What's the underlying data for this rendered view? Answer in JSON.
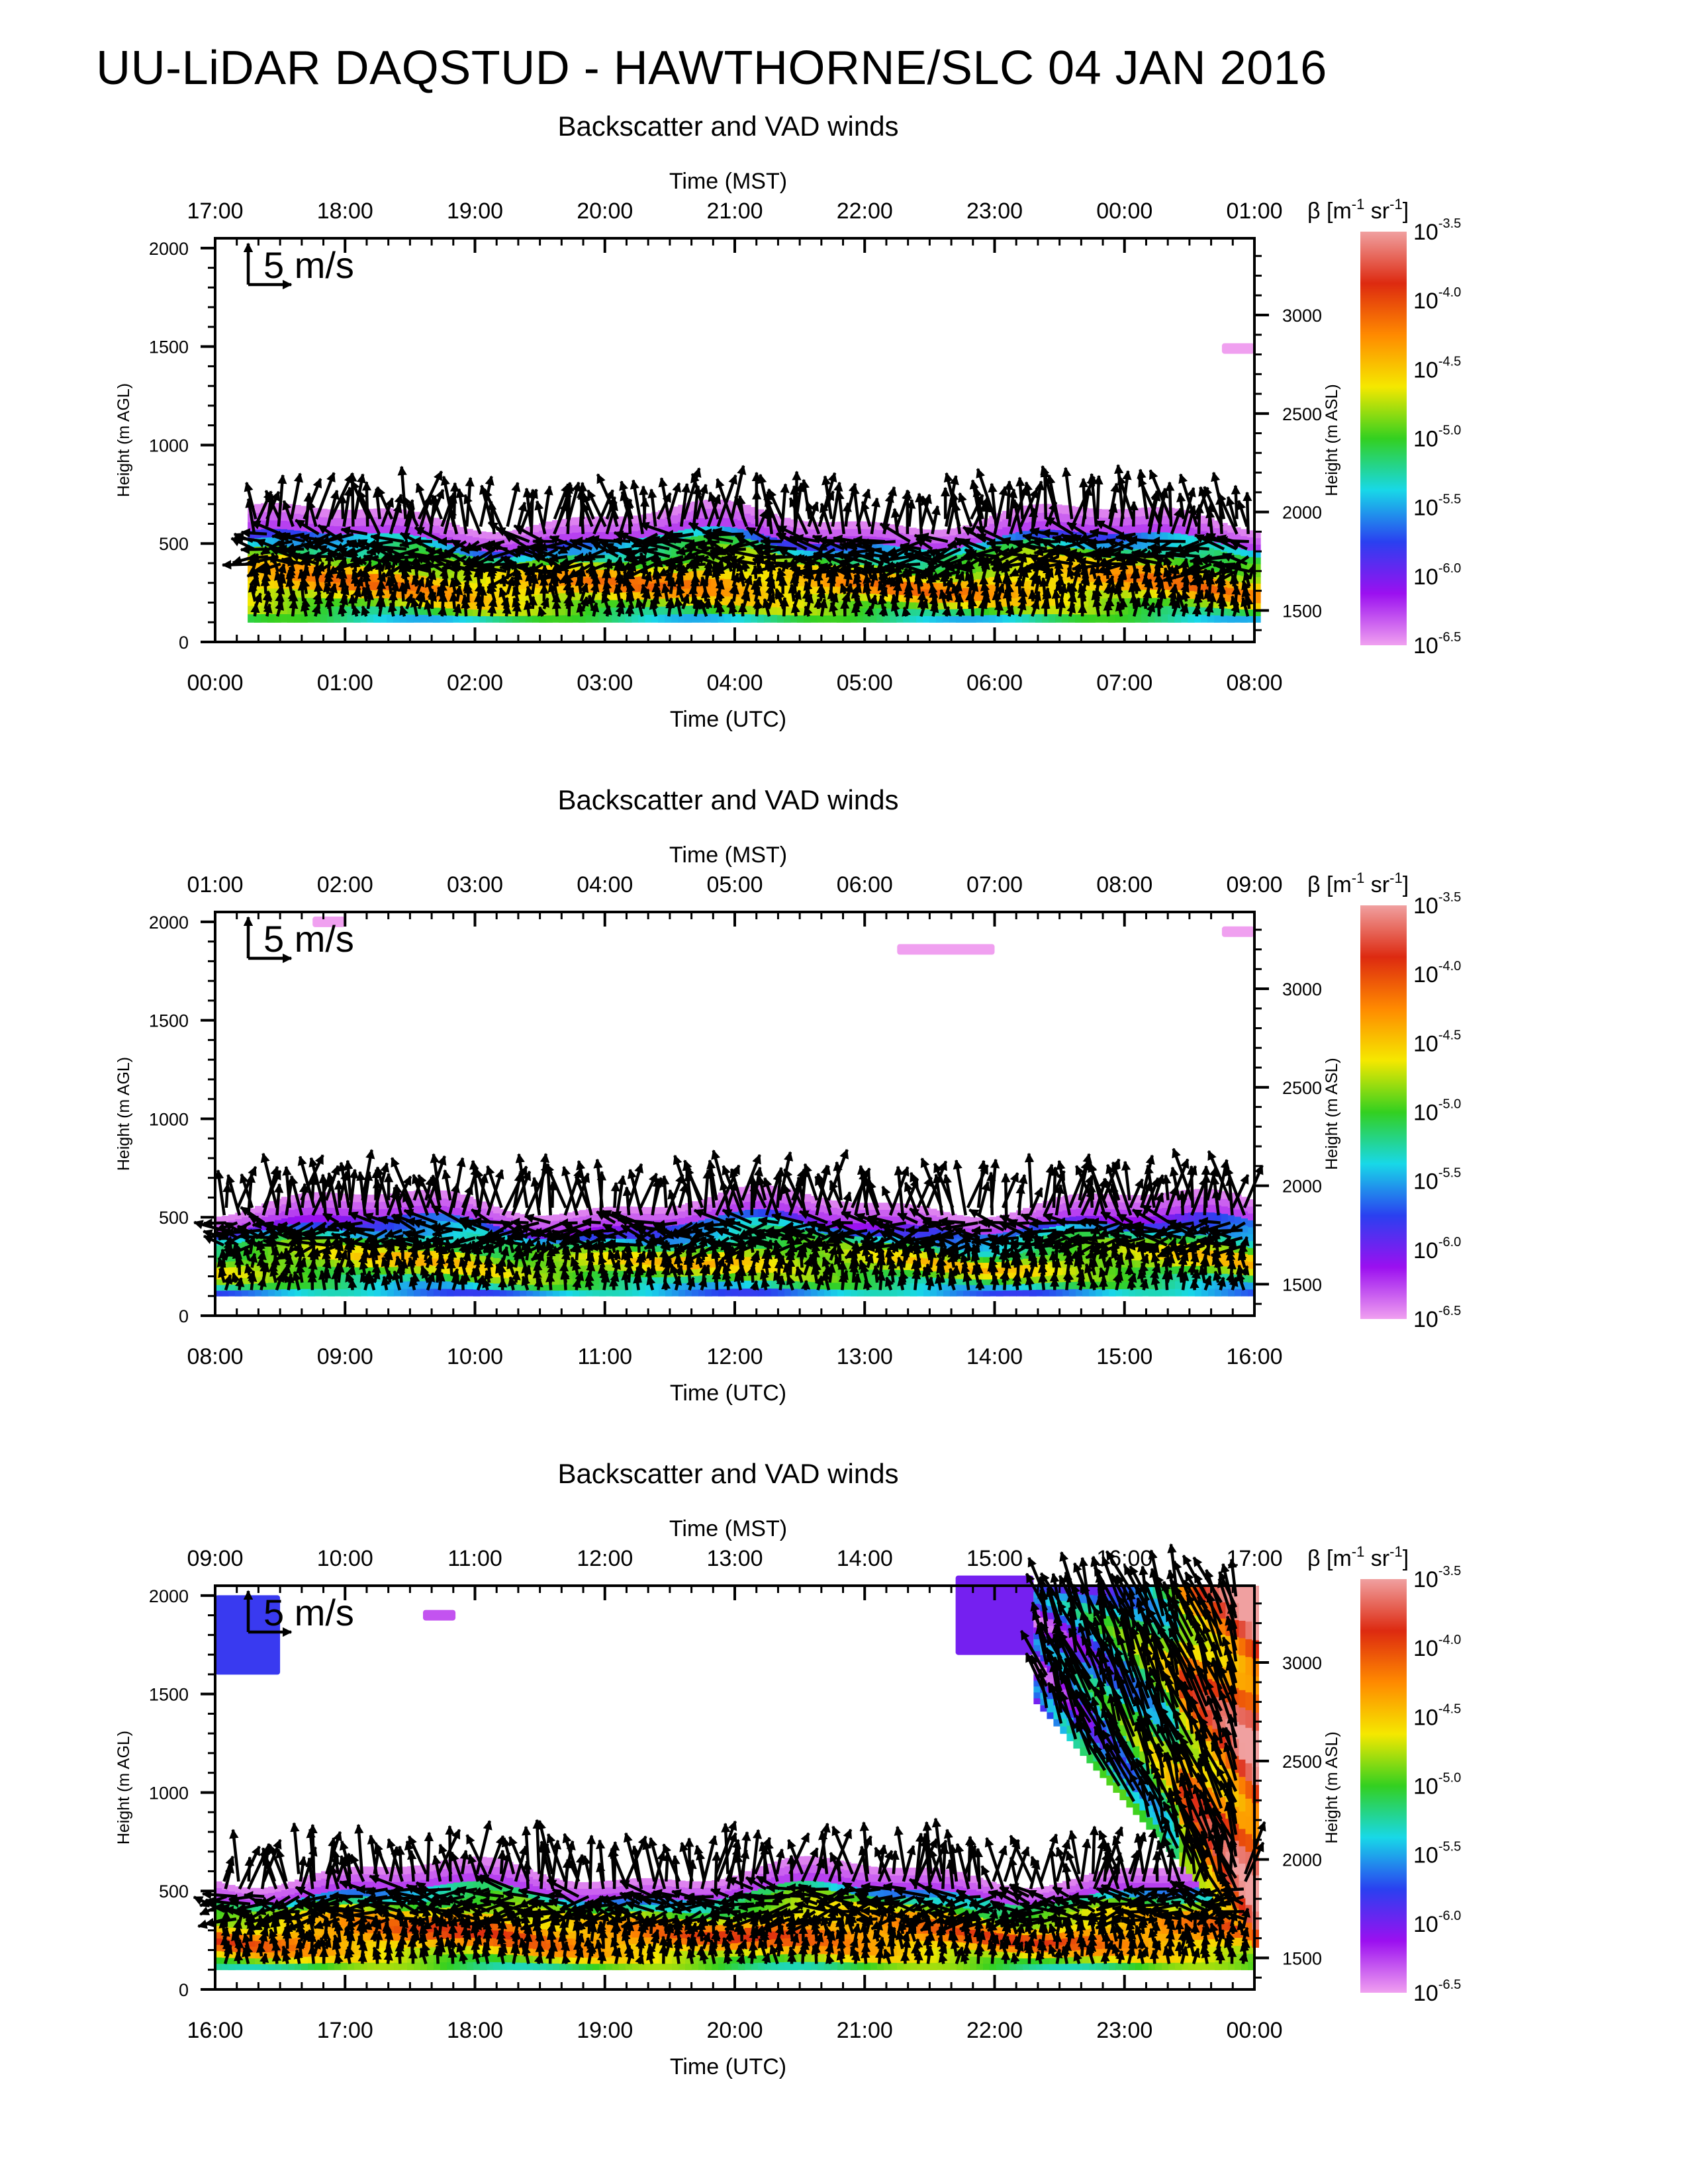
{
  "title": "UU-LiDAR DAQSTUD - HAWTHORNE/SLC 04 JAN 2016",
  "colorbar": {
    "label_prefix": "β [m",
    "label_exp1": "-1",
    "label_mid": " sr",
    "label_exp2": "-1",
    "label_suffix": "]",
    "tick_mantissa": "10",
    "tick_exponents": [
      "-3.5",
      "-4.0",
      "-4.5",
      "-5.0",
      "-5.5",
      "-6.0",
      "-6.5"
    ],
    "colors": [
      "#f0a0a0",
      "#dd2a10",
      "#ff8a00",
      "#f5e800",
      "#33d020",
      "#18d8e8",
      "#2a40f0",
      "#9b10f0",
      "#f0a0f0"
    ]
  },
  "chart_data": [
    {
      "type": "heatmap",
      "subtitle": "Backscatter and VAD winds",
      "xlabel_top": "Time (MST)",
      "xlabel": "Time (UTC)",
      "ylabel": "Height (m AGL)",
      "ylabel_right": "Height (m ASL)",
      "x_ticks_utc": [
        "00:00",
        "01:00",
        "02:00",
        "03:00",
        "04:00",
        "05:00",
        "06:00",
        "07:00",
        "08:00"
      ],
      "x_ticks_mst": [
        "17:00",
        "18:00",
        "19:00",
        "20:00",
        "21:00",
        "22:00",
        "23:00",
        "00:00",
        "01:00"
      ],
      "y_ticks": [
        "0",
        "500",
        "1000",
        "1500",
        "2000"
      ],
      "y_ticks_right": [
        "1500",
        "2000",
        "2500",
        "3000"
      ],
      "ylim_agl": [
        0,
        2050
      ],
      "ylim_asl": [
        1340,
        3390
      ],
      "x_range_hours": [
        0,
        8
      ],
      "reference_vector": "5 m/s",
      "aerosol_layer": {
        "bottom_m": 100,
        "top_m": 640,
        "data_start_hour": 0.25,
        "max_log10_beta": -4.3
      },
      "elevated_features": [
        {
          "hour_start": 7.75,
          "hour_end": 8.0,
          "height_m": 1490,
          "log10_beta": -6.5
        }
      ]
    },
    {
      "type": "heatmap",
      "subtitle": "Backscatter and VAD winds",
      "xlabel_top": "Time (MST)",
      "xlabel": "Time (UTC)",
      "ylabel": "Height (m AGL)",
      "ylabel_right": "Height (m ASL)",
      "x_ticks_utc": [
        "08:00",
        "09:00",
        "10:00",
        "11:00",
        "12:00",
        "13:00",
        "14:00",
        "15:00",
        "16:00"
      ],
      "x_ticks_mst": [
        "01:00",
        "02:00",
        "03:00",
        "04:00",
        "05:00",
        "06:00",
        "07:00",
        "08:00",
        "09:00"
      ],
      "y_ticks": [
        "0",
        "500",
        "1000",
        "1500",
        "2000"
      ],
      "y_ticks_right": [
        "1500",
        "2000",
        "2500",
        "3000"
      ],
      "ylim_agl": [
        0,
        2050
      ],
      "ylim_asl": [
        1340,
        3390
      ],
      "x_range_hours": [
        8,
        16
      ],
      "reference_vector": "5 m/s",
      "aerosol_layer": {
        "bottom_m": 100,
        "top_m": 580,
        "data_start_hour": 8.0,
        "max_log10_beta": -4.6
      },
      "elevated_features": [
        {
          "hour_start": 8.75,
          "hour_end": 9.0,
          "height_m": 2000,
          "log10_beta": -6.5
        },
        {
          "hour_start": 13.25,
          "hour_end": 14.0,
          "height_m": 1860,
          "log10_beta": -6.5
        },
        {
          "hour_start": 15.75,
          "hour_end": 16.0,
          "height_m": 1950,
          "log10_beta": -6.5
        }
      ]
    },
    {
      "type": "heatmap",
      "subtitle": "Backscatter and VAD winds",
      "xlabel_top": "Time (MST)",
      "xlabel": "Time (UTC)",
      "ylabel": "Height (m AGL)",
      "ylabel_right": "Height (m ASL)",
      "x_ticks_utc": [
        "16:00",
        "17:00",
        "18:00",
        "19:00",
        "20:00",
        "21:00",
        "22:00",
        "23:00",
        "00:00"
      ],
      "x_ticks_mst": [
        "09:00",
        "10:00",
        "11:00",
        "12:00",
        "13:00",
        "14:00",
        "15:00",
        "16:00",
        "17:00"
      ],
      "y_ticks": [
        "0",
        "500",
        "1000",
        "1500",
        "2000"
      ],
      "y_ticks_right": [
        "1500",
        "2000",
        "2500",
        "3000"
      ],
      "ylim_agl": [
        0,
        2050
      ],
      "ylim_asl": [
        1340,
        3390
      ],
      "x_range_hours": [
        16,
        24
      ],
      "reference_vector": "5 m/s",
      "aerosol_layer": {
        "bottom_m": 100,
        "top_m": 600,
        "data_start_hour": 16.0,
        "max_log10_beta": -4.1
      },
      "elevated_features": [
        {
          "hour_start": 16.0,
          "hour_end": 16.5,
          "height_m": 1800,
          "log10_beta": -5.8
        },
        {
          "hour_start": 17.6,
          "hour_end": 17.85,
          "height_m": 1900,
          "log10_beta": -6.3
        },
        {
          "hour_start": 21.7,
          "hour_end": 22.3,
          "height_m": 1900,
          "log10_beta": -6.0
        },
        {
          "hour_start": 22.3,
          "hour_end": 24.0,
          "height_m": 1500,
          "log10_beta": -4.6
        }
      ]
    }
  ]
}
